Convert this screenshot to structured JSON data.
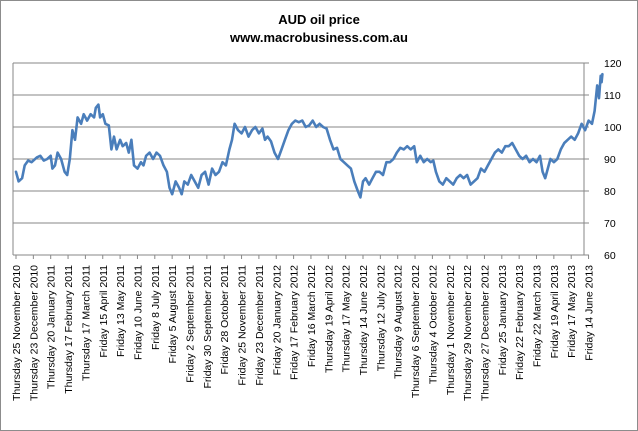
{
  "chart_data": {
    "type": "line",
    "title": "AUD oil price",
    "subtitle": "www.macrobusiness.com.au",
    "xlabel": "",
    "ylabel": "",
    "ylim": [
      60,
      120
    ],
    "yticks": [
      60,
      70,
      80,
      90,
      100,
      110,
      120
    ],
    "grid": true,
    "legend": "none",
    "line_color": "#4a7ebb",
    "categories": [
      "Thursday 25 November 2010",
      "Thursday 23 December 2010",
      "Thursday 20 January 2011",
      "Thursday 17 February 2011",
      "Thursday 17 March 2011",
      "Friday 15 April 2011",
      "Friday 13 May 2011",
      "Friday 10 June 2011",
      "Friday 8 July 2011",
      "Friday 5 August 2011",
      "Friday 2 September 2011",
      "Friday 30 September 2011",
      "Friday 28 October 2011",
      "Friday 25 November 2011",
      "Friday 23 December 2011",
      "Friday 20 January 2012",
      "Friday 17 February 2012",
      "Friday 16 March 2012",
      "Thursday 19 April 2012",
      "Thursday 17 May 2012",
      "Thursday 14 June 2012",
      "Thursday 12 July 2012",
      "Thursday 9 August 2012",
      "Thursday 6 September 2012",
      "Thursday 4 October 2012",
      "Thursday 1 November 2012",
      "Thursday 29 November 2012",
      "Thursday 27 December 2012",
      "Friday 25 January 2013",
      "Friday 22 February 2013",
      "Friday 22 March 2013",
      "Friday 19 April 2013",
      "Friday 17 May 2013",
      "Friday 14 June 2013"
    ],
    "series": [
      {
        "name": "",
        "points": [
          [
            0,
            86
          ],
          [
            0.15,
            83
          ],
          [
            0.35,
            84
          ],
          [
            0.5,
            88
          ],
          [
            0.7,
            89.5
          ],
          [
            0.9,
            89
          ],
          [
            1.2,
            90.5
          ],
          [
            1.4,
            91
          ],
          [
            1.6,
            89.5
          ],
          [
            1.8,
            90
          ],
          [
            2.0,
            91
          ],
          [
            2.1,
            87
          ],
          [
            2.25,
            88
          ],
          [
            2.4,
            92
          ],
          [
            2.6,
            90
          ],
          [
            2.8,
            86
          ],
          [
            2.95,
            85
          ],
          [
            3.1,
            90
          ],
          [
            3.25,
            99
          ],
          [
            3.4,
            96
          ],
          [
            3.55,
            103
          ],
          [
            3.75,
            101
          ],
          [
            3.9,
            104
          ],
          [
            4.1,
            102
          ],
          [
            4.3,
            104
          ],
          [
            4.5,
            103
          ],
          [
            4.6,
            106
          ],
          [
            4.75,
            107
          ],
          [
            4.85,
            103
          ],
          [
            5.0,
            104
          ],
          [
            5.15,
            101
          ],
          [
            5.35,
            100.5
          ],
          [
            5.5,
            93
          ],
          [
            5.65,
            97
          ],
          [
            5.8,
            93
          ],
          [
            6.0,
            96
          ],
          [
            6.15,
            94
          ],
          [
            6.35,
            95
          ],
          [
            6.5,
            92
          ],
          [
            6.65,
            96
          ],
          [
            6.8,
            88
          ],
          [
            7.0,
            87
          ],
          [
            7.2,
            89
          ],
          [
            7.35,
            88
          ],
          [
            7.5,
            91
          ],
          [
            7.7,
            92
          ],
          [
            7.9,
            90
          ],
          [
            8.1,
            92
          ],
          [
            8.3,
            91
          ],
          [
            8.5,
            88
          ],
          [
            8.7,
            86
          ],
          [
            8.85,
            81
          ],
          [
            9.0,
            79
          ],
          [
            9.2,
            83
          ],
          [
            9.4,
            81
          ],
          [
            9.55,
            79
          ],
          [
            9.7,
            83
          ],
          [
            9.9,
            82
          ],
          [
            10.1,
            85
          ],
          [
            10.3,
            83
          ],
          [
            10.5,
            81
          ],
          [
            10.7,
            85
          ],
          [
            10.9,
            86
          ],
          [
            11.1,
            82
          ],
          [
            11.3,
            87
          ],
          [
            11.5,
            85
          ],
          [
            11.7,
            86
          ],
          [
            11.9,
            89
          ],
          [
            12.1,
            88
          ],
          [
            12.3,
            93
          ],
          [
            12.45,
            96
          ],
          [
            12.6,
            101
          ],
          [
            12.8,
            99
          ],
          [
            13.0,
            98
          ],
          [
            13.2,
            100
          ],
          [
            13.4,
            97
          ],
          [
            13.6,
            99
          ],
          [
            13.8,
            100
          ],
          [
            14.0,
            98
          ],
          [
            14.2,
            99.5
          ],
          [
            14.35,
            96
          ],
          [
            14.5,
            97
          ],
          [
            14.7,
            95.5
          ],
          [
            14.9,
            92
          ],
          [
            15.1,
            90
          ],
          [
            15.3,
            93
          ],
          [
            15.5,
            96
          ],
          [
            15.7,
            99
          ],
          [
            15.9,
            101
          ],
          [
            16.1,
            102
          ],
          [
            16.3,
            101.5
          ],
          [
            16.5,
            102
          ],
          [
            16.7,
            100
          ],
          [
            16.9,
            100.5
          ],
          [
            17.1,
            102
          ],
          [
            17.3,
            100
          ],
          [
            17.5,
            101
          ],
          [
            17.7,
            100
          ],
          [
            17.9,
            99.5
          ],
          [
            18.1,
            96
          ],
          [
            18.3,
            93
          ],
          [
            18.5,
            93.5
          ],
          [
            18.7,
            90
          ],
          [
            18.9,
            89
          ],
          [
            19.1,
            88
          ],
          [
            19.3,
            87
          ],
          [
            19.5,
            83
          ],
          [
            19.7,
            80
          ],
          [
            19.85,
            78
          ],
          [
            20.0,
            83
          ],
          [
            20.15,
            84
          ],
          [
            20.35,
            82
          ],
          [
            20.55,
            84
          ],
          [
            20.75,
            86
          ],
          [
            20.95,
            86
          ],
          [
            21.15,
            85
          ],
          [
            21.35,
            89
          ],
          [
            21.55,
            89
          ],
          [
            21.75,
            90
          ],
          [
            21.95,
            92
          ],
          [
            22.15,
            93.5
          ],
          [
            22.35,
            93
          ],
          [
            22.55,
            94
          ],
          [
            22.75,
            93
          ],
          [
            22.95,
            94
          ],
          [
            23.1,
            89
          ],
          [
            23.3,
            91
          ],
          [
            23.5,
            89
          ],
          [
            23.7,
            90
          ],
          [
            23.9,
            89
          ],
          [
            24.05,
            89.5
          ],
          [
            24.2,
            86
          ],
          [
            24.4,
            83
          ],
          [
            24.6,
            82
          ],
          [
            24.8,
            84
          ],
          [
            25.0,
            83
          ],
          [
            25.2,
            82
          ],
          [
            25.4,
            84
          ],
          [
            25.6,
            85
          ],
          [
            25.8,
            84
          ],
          [
            26.0,
            85
          ],
          [
            26.2,
            82
          ],
          [
            26.4,
            83
          ],
          [
            26.6,
            84
          ],
          [
            26.8,
            87
          ],
          [
            27.0,
            86
          ],
          [
            27.2,
            88
          ],
          [
            27.4,
            90
          ],
          [
            27.6,
            92
          ],
          [
            27.8,
            93
          ],
          [
            28.0,
            92
          ],
          [
            28.2,
            94
          ],
          [
            28.4,
            94
          ],
          [
            28.6,
            95
          ],
          [
            28.8,
            93
          ],
          [
            29.0,
            91
          ],
          [
            29.2,
            90
          ],
          [
            29.4,
            91
          ],
          [
            29.6,
            89
          ],
          [
            29.8,
            90
          ],
          [
            30.0,
            89
          ],
          [
            30.2,
            91
          ],
          [
            30.35,
            86
          ],
          [
            30.5,
            84
          ],
          [
            30.65,
            87
          ],
          [
            30.8,
            90
          ],
          [
            31.0,
            89
          ],
          [
            31.2,
            90
          ],
          [
            31.4,
            93
          ],
          [
            31.6,
            95
          ],
          [
            31.8,
            96
          ],
          [
            32.0,
            97
          ],
          [
            32.2,
            96
          ],
          [
            32.4,
            98
          ],
          [
            32.6,
            101
          ],
          [
            32.8,
            99
          ],
          [
            33.0,
            102
          ],
          [
            33.2,
            101
          ],
          [
            33.35,
            105
          ],
          [
            33.5,
            113
          ],
          [
            33.6,
            109
          ],
          [
            33.7,
            116
          ],
          [
            33.75,
            114
          ],
          [
            33.8,
            116.5
          ]
        ]
      }
    ]
  }
}
